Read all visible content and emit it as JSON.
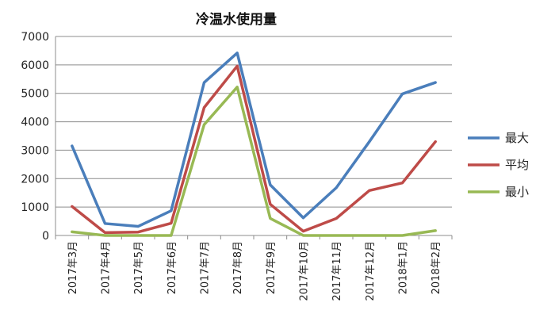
{
  "chart_data": {
    "type": "line",
    "title": "冷温水使用量",
    "xlabel": "",
    "ylabel": "",
    "categories": [
      "2017年3月",
      "2017年4月",
      "2017年5月",
      "2017年6月",
      "2017年7月",
      "2017年8月",
      "2017年9月",
      "2017年10月",
      "2017年11月",
      "2017年12月",
      "2018年1月",
      "2018年2月"
    ],
    "ylim": [
      0,
      7000
    ],
    "yticks": [
      0,
      1000,
      2000,
      3000,
      4000,
      5000,
      6000,
      7000
    ],
    "grid": true,
    "legend_position": "right",
    "series": [
      {
        "name": "最大",
        "color": "#4a7ebb",
        "values": [
          3150,
          420,
          320,
          870,
          5380,
          6420,
          1780,
          620,
          1680,
          3300,
          4980,
          5380
        ]
      },
      {
        "name": "平均",
        "color": "#be4b48",
        "values": [
          1020,
          100,
          120,
          430,
          4500,
          5960,
          1100,
          150,
          600,
          1580,
          1850,
          3300
        ]
      },
      {
        "name": "最小",
        "color": "#98b954",
        "values": [
          130,
          0,
          0,
          0,
          3900,
          5220,
          600,
          0,
          0,
          0,
          0,
          170
        ]
      }
    ]
  }
}
